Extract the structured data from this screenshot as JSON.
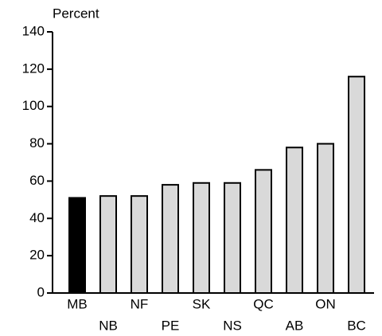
{
  "chart_data": {
    "type": "bar",
    "y_label": "Percent",
    "categories": [
      "MB",
      "NB",
      "NF",
      "PE",
      "SK",
      "NS",
      "QC",
      "AB",
      "ON",
      "BC"
    ],
    "values": [
      51,
      52,
      52,
      58,
      59,
      59,
      66,
      78,
      80,
      116
    ],
    "colors": [
      "#000000",
      "#d9d9d9",
      "#d9d9d9",
      "#d9d9d9",
      "#d9d9d9",
      "#d9d9d9",
      "#d9d9d9",
      "#d9d9d9",
      "#d9d9d9",
      "#d9d9d9"
    ],
    "ylim": [
      0,
      140
    ],
    "yticks": [
      0,
      20,
      40,
      60,
      80,
      100,
      120,
      140
    ],
    "grid": false
  }
}
